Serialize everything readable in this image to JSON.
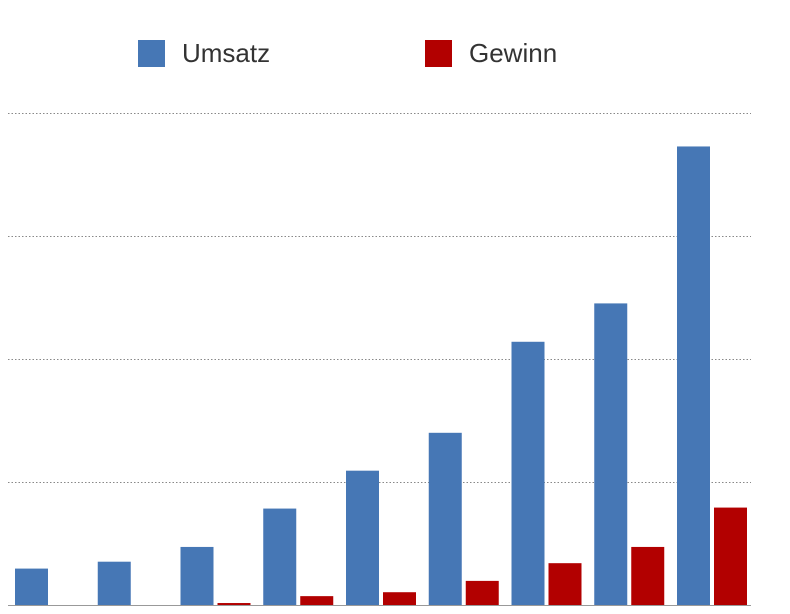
{
  "chart_data": {
    "type": "bar",
    "title": "",
    "xlabel": "",
    "ylabel": "",
    "categories": [
      "",
      "",
      "",
      "",
      "",
      "",
      "",
      "",
      ""
    ],
    "ylim": [
      0,
      100
    ],
    "grid": "horizontal-dotted",
    "legend_position": "top",
    "series": [
      {
        "name": "Umsatz",
        "color": "#4677b5",
        "values": [
          7.4,
          8.8,
          11.8,
          19.6,
          27.3,
          35.0,
          53.5,
          61.3,
          93.2
        ]
      },
      {
        "name": "Gewinn",
        "color": "#b20000",
        "values": [
          0,
          0,
          0.4,
          1.8,
          2.6,
          4.9,
          8.5,
          11.8,
          19.8
        ]
      }
    ]
  },
  "colors": {
    "grid": "#888888",
    "axis": "#999999"
  }
}
